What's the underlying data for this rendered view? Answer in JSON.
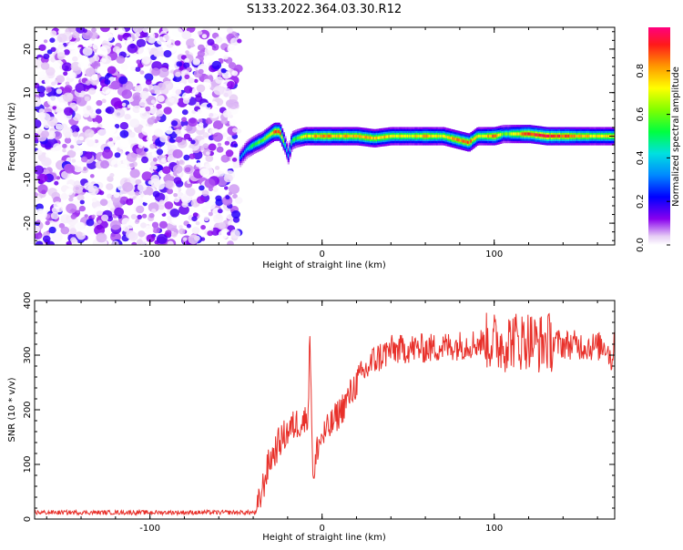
{
  "title": "S133.2022.364.03.30.R12",
  "chart_data": [
    {
      "type": "heatmap",
      "xlabel": "Height of straight line (km)",
      "ylabel": "Frequency (Hz)",
      "xlim": [
        -167,
        170
      ],
      "ylim": [
        -25,
        25
      ],
      "xticks": [
        -100,
        0,
        100
      ],
      "yticks": [
        -20,
        -10,
        0,
        10,
        20
      ],
      "noise_region_x": [
        -167,
        -48
      ],
      "ridge": {
        "x": [
          -48,
          -44,
          -40,
          -35,
          -30,
          -28,
          -25,
          -22,
          -20,
          -18,
          -15,
          -10,
          0,
          10,
          20,
          30,
          40,
          50,
          60,
          70,
          75,
          80,
          85,
          90,
          95,
          100,
          105,
          110,
          115,
          120,
          130,
          140,
          150,
          160,
          170
        ],
        "y": [
          -5,
          -3,
          -2,
          -1,
          0.5,
          1,
          1,
          -2,
          -4.5,
          -1,
          -0.5,
          0,
          0,
          0,
          0,
          -0.5,
          0,
          0,
          0,
          0,
          -0.5,
          -1,
          -1.5,
          0,
          0,
          0,
          0.5,
          0.5,
          0.5,
          0.5,
          0,
          0,
          0,
          0,
          0
        ],
        "amp": [
          0.3,
          0.4,
          0.55,
          0.6,
          0.7,
          0.9,
          0.9,
          0.5,
          0.35,
          0.5,
          0.6,
          0.75,
          0.85,
          0.8,
          0.85,
          0.8,
          0.75,
          0.7,
          0.8,
          0.7,
          0.8,
          0.85,
          0.9,
          0.7,
          0.8,
          0.85,
          0.6,
          0.7,
          0.8,
          0.95,
          0.95,
          0.9,
          0.8,
          0.75,
          0.7
        ]
      },
      "colorbar": {
        "label": "Normalized spectral amplitude",
        "range": [
          0,
          1
        ],
        "ticks": [
          0.0,
          0.2,
          0.4,
          0.6,
          0.8
        ],
        "tick_labels": [
          "0.0",
          "0.2",
          "0.4",
          "0.6",
          "0.8"
        ]
      }
    },
    {
      "type": "line",
      "xlabel": "Height of straight line (km)",
      "ylabel": "SNR (10 * v/v)",
      "xlim": [
        -167,
        170
      ],
      "ylim": [
        0,
        400
      ],
      "xticks": [
        -100,
        0,
        100
      ],
      "yticks": [
        0,
        100,
        200,
        300,
        400
      ],
      "color": "#e8302a",
      "series": [
        {
          "x": [
            -167,
            -100,
            -50,
            -38,
            -35,
            -32,
            -30,
            -28,
            -25,
            -20,
            -15,
            -10,
            -8,
            -7,
            -6,
            -5,
            -4,
            -3,
            0,
            5,
            10,
            15,
            20,
            25,
            30,
            35,
            40,
            45,
            50,
            60,
            70,
            80,
            90,
            100,
            105,
            110,
            115,
            120,
            125,
            130,
            140,
            150,
            160,
            165,
            168,
            170
          ],
          "y": [
            12,
            12,
            12,
            12,
            50,
            90,
            110,
            120,
            140,
            160,
            175,
            180,
            200,
            350,
            180,
            60,
            90,
            130,
            150,
            170,
            195,
            220,
            250,
            270,
            290,
            300,
            310,
            310,
            312,
            312,
            315,
            318,
            322,
            325,
            320,
            330,
            325,
            330,
            320,
            325,
            320,
            318,
            315,
            320,
            290,
            320
          ]
        }
      ]
    }
  ]
}
